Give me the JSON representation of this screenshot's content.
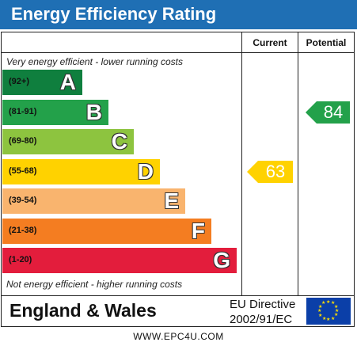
{
  "title": "Energy Efficiency Rating",
  "columns": {
    "current": "Current",
    "potential": "Potential"
  },
  "top_note": "Very energy efficient - lower running costs",
  "bottom_note": "Not energy efficient - higher running costs",
  "bands": [
    {
      "range": "(92+)",
      "letter": "A",
      "color": "#0f7f3e"
    },
    {
      "range": "(81-91)",
      "letter": "B",
      "color": "#23a14a"
    },
    {
      "range": "(69-80)",
      "letter": "C",
      "color": "#8dc43f"
    },
    {
      "range": "(55-68)",
      "letter": "D",
      "color": "#ffd200"
    },
    {
      "range": "(39-54)",
      "letter": "E",
      "color": "#f9b46e"
    },
    {
      "range": "(21-38)",
      "letter": "F",
      "color": "#f47d21"
    },
    {
      "range": "(1-20)",
      "letter": "G",
      "color": "#e31d3c"
    }
  ],
  "current": {
    "value": "63",
    "band": "D",
    "color": "#ffd200"
  },
  "potential": {
    "value": "84",
    "band": "B",
    "color": "#23a14a"
  },
  "footer": {
    "region": "England & Wales",
    "directive_line1": "EU Directive",
    "directive_line2": "2002/91/EC"
  },
  "url": "WWW.EPC4U.COM",
  "colors": {
    "title_bar": "#1f6fb4",
    "eu_flag": "#0b3fa8",
    "eu_stars": "#ffdd00"
  }
}
